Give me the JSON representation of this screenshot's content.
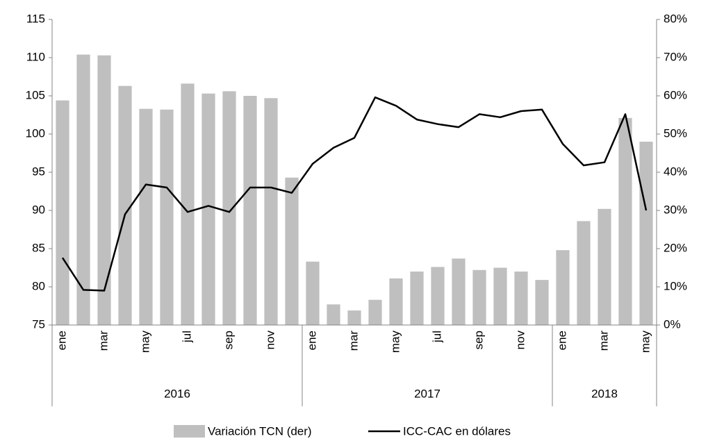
{
  "chart_data": {
    "type": "bar-line",
    "categories": [
      "ene",
      null,
      "mar",
      null,
      "may",
      null,
      "jul",
      null,
      "sep",
      null,
      "nov",
      null,
      "ene",
      null,
      "mar",
      null,
      "may",
      null,
      "jul",
      null,
      "sep",
      null,
      "nov",
      null,
      "ene",
      null,
      "mar",
      null,
      "may"
    ],
    "groups": [
      {
        "label": "2016",
        "count": 12
      },
      {
        "label": "2017",
        "count": 12
      },
      {
        "label": "2018",
        "count": 5
      }
    ],
    "series": [
      {
        "name": "Variación TCN (der)",
        "type": "bar",
        "axis": "y2",
        "color": "#bfbfbf",
        "values": [
          58.8,
          70.8,
          70.6,
          62.6,
          56.6,
          56.4,
          63.2,
          60.6,
          61.2,
          60,
          59.4,
          38.6,
          16.6,
          5.4,
          3.8,
          6.6,
          12.2,
          14,
          15.2,
          17.4,
          14.4,
          15,
          14,
          11.8,
          19.6,
          27.2,
          30.4,
          54.2,
          48
        ]
      },
      {
        "name": "ICC-CAC en dólares",
        "type": "line",
        "axis": "y",
        "color": "#000000",
        "values": [
          83.8,
          79.6,
          79.5,
          89.5,
          93.4,
          93.0,
          89.8,
          90.6,
          89.8,
          93.0,
          93.0,
          92.3,
          96.1,
          98.2,
          99.5,
          104.8,
          103.7,
          101.9,
          101.3,
          100.9,
          102.6,
          102.2,
          103.0,
          103.2,
          98.7,
          95.9,
          96.3,
          102.6,
          90.0
        ]
      }
    ],
    "ylim": [
      75,
      115
    ],
    "yticks": [
      75,
      80,
      85,
      90,
      95,
      100,
      105,
      110,
      115
    ],
    "y2lim": [
      0,
      80
    ],
    "y2ticks": [
      {
        "value": 0,
        "label": "0%"
      },
      {
        "value": 10,
        "label": "10%"
      },
      {
        "value": 20,
        "label": "20%"
      },
      {
        "value": 30,
        "label": "30%"
      },
      {
        "value": 40,
        "label": "40%"
      },
      {
        "value": 50,
        "label": "50%"
      },
      {
        "value": 60,
        "label": "60%"
      },
      {
        "value": 70,
        "label": "70%"
      },
      {
        "value": 80,
        "label": "80%"
      }
    ],
    "grid": false,
    "legend": "bottom"
  }
}
